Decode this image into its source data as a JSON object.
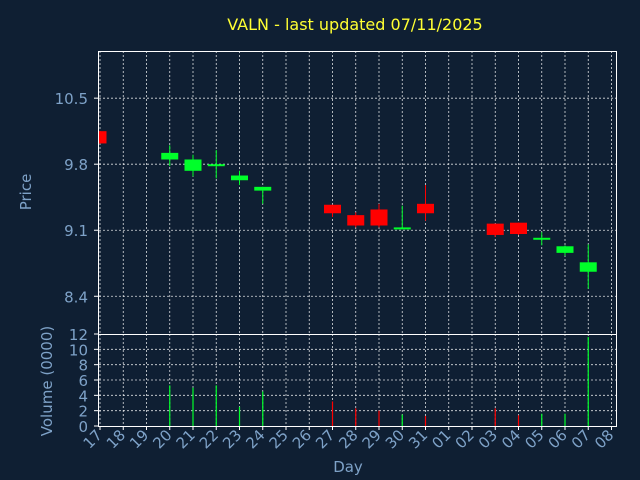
{
  "chart_data": [
    {
      "type": "candlestick",
      "title": "VALN - last updated 07/11/2025",
      "ylabel": "Price",
      "ylim": [
        8.0,
        11.0
      ],
      "yticks": [
        "10.5",
        "9.8",
        "9.1",
        "8.4"
      ],
      "candles": [
        {
          "day": "17",
          "open": 10.15,
          "high": 10.15,
          "low": 10.02,
          "close": 10.02
        },
        {
          "day": "20",
          "open": 9.85,
          "high": 10.0,
          "low": 9.78,
          "close": 9.92
        },
        {
          "day": "21",
          "open": 9.73,
          "high": 9.9,
          "low": 9.67,
          "close": 9.85
        },
        {
          "day": "22",
          "open": 9.78,
          "high": 9.95,
          "low": 9.65,
          "close": 9.8
        },
        {
          "day": "23",
          "open": 9.63,
          "high": 9.73,
          "low": 9.58,
          "close": 9.68
        },
        {
          "day": "24",
          "open": 9.52,
          "high": 9.56,
          "low": 9.38,
          "close": 9.56
        },
        {
          "day": "27",
          "open": 9.37,
          "high": 9.37,
          "low": 9.24,
          "close": 9.28
        },
        {
          "day": "28",
          "open": 9.26,
          "high": 9.29,
          "low": 9.13,
          "close": 9.15
        },
        {
          "day": "29",
          "open": 9.32,
          "high": 9.38,
          "low": 9.13,
          "close": 9.15
        },
        {
          "day": "30",
          "open": 9.12,
          "high": 9.36,
          "low": 9.12,
          "close": 9.13
        },
        {
          "day": "31",
          "open": 9.38,
          "high": 9.58,
          "low": 9.2,
          "close": 9.28
        },
        {
          "day": "03",
          "open": 9.17,
          "high": 9.17,
          "low": 9.03,
          "close": 9.05
        },
        {
          "day": "04",
          "open": 9.18,
          "high": 9.18,
          "low": 9.05,
          "close": 9.06
        },
        {
          "day": "05",
          "open": 9.0,
          "high": 9.08,
          "low": 8.94,
          "close": 9.02
        },
        {
          "day": "06",
          "open": 8.86,
          "high": 8.94,
          "low": 8.83,
          "close": 8.93
        },
        {
          "day": "07",
          "open": 8.66,
          "high": 8.95,
          "low": 8.48,
          "close": 8.76
        }
      ]
    },
    {
      "type": "bar",
      "ylabel": "Volume (0000)",
      "xlabel": "Day",
      "ylim": [
        0,
        12
      ],
      "yticks": [
        "0",
        "2",
        "4",
        "6",
        "8",
        "10",
        "12"
      ],
      "categories": [
        "17",
        "18",
        "19",
        "20",
        "21",
        "22",
        "23",
        "24",
        "25",
        "26",
        "27",
        "28",
        "29",
        "30",
        "31",
        "01",
        "02",
        "03",
        "04",
        "05",
        "06",
        "07",
        "08"
      ],
      "values": [
        0,
        0,
        0,
        5.3,
        5.0,
        5.3,
        2.5,
        4.5,
        0,
        0,
        3.2,
        2.3,
        2.0,
        1.5,
        1.3,
        0,
        0,
        2.3,
        1.4,
        1.6,
        1.6,
        11.6,
        0
      ],
      "bar_direction": [
        "none",
        "none",
        "none",
        "up",
        "up",
        "up",
        "up",
        "up",
        "none",
        "none",
        "down",
        "down",
        "down",
        "up",
        "down",
        "none",
        "none",
        "down",
        "down",
        "up",
        "up",
        "up",
        "none"
      ]
    }
  ],
  "colors": {
    "background": "#0f1f33",
    "title": "#ffff33",
    "axis_text": "#7ea2c8",
    "up": "#00ff2a",
    "down": "#ff0000",
    "grid": "#ffffff"
  }
}
